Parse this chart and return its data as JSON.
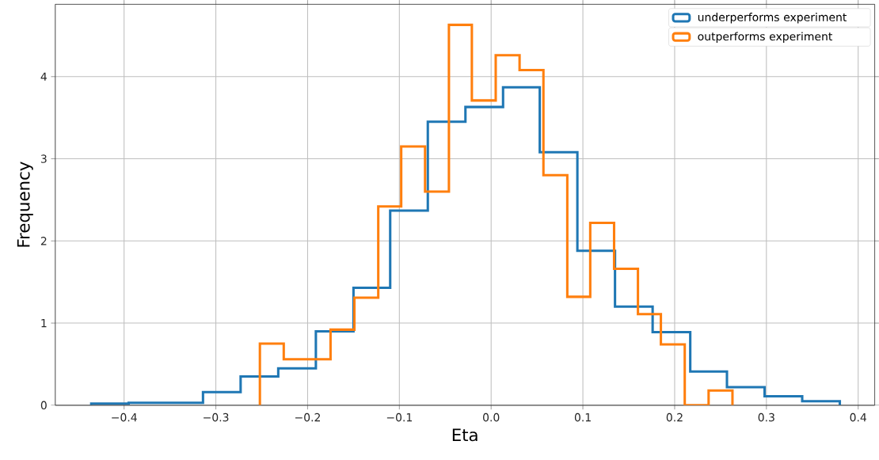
{
  "chart_data": [
    {
      "type": "histogram",
      "xlabel": "Eta",
      "ylabel": "Frequency",
      "xlim": [
        -0.475,
        0.418
      ],
      "ylim": [
        0,
        4.88
      ],
      "xticks": [
        {
          "value": -0.4,
          "label": "−0.4"
        },
        {
          "value": -0.3,
          "label": "−0.3"
        },
        {
          "value": -0.2,
          "label": "−0.2"
        },
        {
          "value": -0.1,
          "label": "−0.1"
        },
        {
          "value": 0.0,
          "label": "0.0"
        },
        {
          "value": 0.1,
          "label": "0.1"
        },
        {
          "value": 0.2,
          "label": "0.2"
        },
        {
          "value": 0.3,
          "label": "0.3"
        },
        {
          "value": 0.4,
          "label": "0.4"
        }
      ],
      "yticks": [
        0,
        1,
        2,
        3,
        4
      ],
      "grid": true,
      "legend": "top right",
      "bins": [
        -0.436,
        -0.395,
        -0.354,
        -0.314,
        -0.273,
        -0.232,
        -0.191,
        -0.15,
        -0.11,
        -0.069,
        -0.028,
        0.013,
        0.053,
        0.094,
        0.135,
        0.176,
        0.217,
        0.257,
        0.298,
        0.339,
        0.38
      ],
      "series": [
        {
          "name": "underperforms experiment",
          "color": "#1f77b4",
          "values": [
            0.02,
            0.03,
            0.03,
            0.16,
            0.35,
            0.45,
            0.9,
            1.43,
            2.37,
            3.45,
            3.63,
            3.87,
            3.08,
            1.88,
            1.2,
            0.89,
            0.41,
            0.22,
            0.11,
            0.05
          ]
        }
      ]
    },
    {
      "type": "histogram",
      "xlim": [
        -0.475,
        0.418
      ],
      "ylim": [
        0,
        4.88
      ],
      "tick_labels": false,
      "legend": "top right",
      "xticks": [
        {
          "value": -0.4,
          "label": null
        },
        {
          "value": -0.3,
          "label": null
        },
        {
          "value": -0.2,
          "label": null
        },
        {
          "value": -0.1,
          "label": null
        },
        {
          "value": 0.0,
          "label": null
        },
        {
          "value": 0.1,
          "label": null
        },
        {
          "value": 0.2,
          "label": null
        },
        {
          "value": 0.3,
          "label": null
        },
        {
          "value": 0.4,
          "label": null
        }
      ],
      "yticks": [
        0,
        1,
        2,
        3,
        4
      ],
      "bins": [
        -0.252,
        -0.226,
        -0.201,
        -0.175,
        -0.149,
        -0.123,
        -0.098,
        -0.072,
        -0.046,
        -0.021,
        0.005,
        0.031,
        0.057,
        0.083,
        0.108,
        0.134,
        0.16,
        0.185,
        0.211,
        0.237,
        0.263
      ],
      "series": [
        {
          "name": "outperforms experiment",
          "color": "#ff7f0e",
          "values": [
            0.75,
            0.56,
            0.56,
            0.92,
            1.31,
            2.42,
            3.15,
            2.6,
            4.63,
            3.71,
            4.26,
            4.08,
            2.8,
            1.32,
            2.22,
            1.66,
            1.11,
            0.74,
            0.0,
            0.18
          ]
        }
      ]
    }
  ]
}
